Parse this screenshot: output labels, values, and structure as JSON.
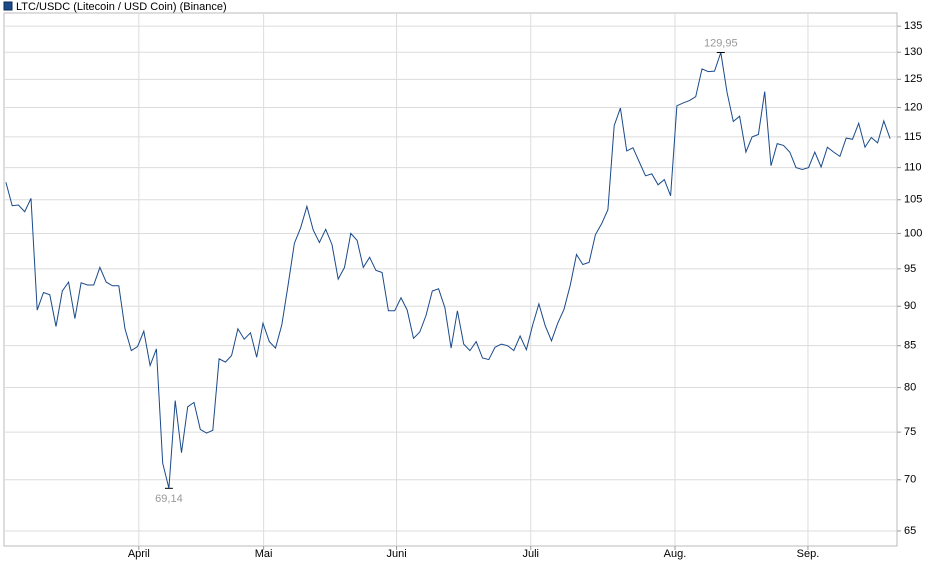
{
  "chart_data": {
    "type": "line",
    "log_scale": true,
    "grid": true,
    "series": [
      {
        "name": "LTC/USDC (Litecoin / USD Coin) (Binance)",
        "color": "#1a4a8a",
        "values": [
          107.7,
          104.1,
          104.2,
          103.2,
          105.2,
          89.5,
          91.8,
          91.5,
          87.4,
          92.0,
          93.2,
          88.4,
          93.1,
          92.8,
          92.8,
          95.2,
          93.2,
          92.7,
          92.7,
          87.1,
          84.4,
          84.9,
          86.8,
          82.6,
          84.6,
          71.7,
          69.14,
          78.5,
          72.8,
          77.8,
          78.3,
          75.3,
          74.9,
          75.2,
          83.4,
          83.0,
          83.8,
          87.1,
          85.8,
          86.6,
          83.6,
          87.8,
          85.5,
          84.7,
          87.6,
          92.8,
          98.6,
          100.8,
          104.0,
          100.5,
          98.7,
          100.6,
          98.4,
          93.6,
          95.2,
          100.0,
          99.0,
          95.2,
          96.6,
          94.8,
          94.5,
          89.4,
          89.4,
          91.1,
          89.5,
          85.9,
          86.7,
          88.8,
          92.0,
          92.3,
          89.8,
          84.7,
          89.4,
          85.2,
          84.4,
          85.5,
          83.5,
          83.3,
          84.8,
          85.2,
          85.0,
          84.4,
          86.2,
          84.5,
          87.6,
          90.3,
          87.5,
          85.6,
          87.8,
          89.6,
          92.8,
          97.0,
          95.6,
          95.9,
          99.8,
          101.4,
          103.5,
          116.9,
          119.9,
          112.7,
          113.2,
          110.9,
          108.7,
          109.0,
          107.3,
          108.1,
          105.6,
          120.3,
          120.8,
          121.2,
          121.9,
          126.9,
          126.4,
          126.5,
          129.95,
          122.6,
          117.6,
          118.5,
          112.5,
          115.0,
          115.4,
          122.8,
          110.3,
          113.9,
          113.6,
          112.5,
          110.0,
          109.7,
          110.0,
          112.5,
          110.1,
          113.3,
          112.5,
          111.8,
          114.8,
          114.6,
          117.3,
          113.3,
          114.9,
          114.0,
          117.7,
          114.7
        ],
        "value_labels": [
          null,
          null,
          null,
          null,
          null,
          null,
          null,
          null,
          null,
          null,
          null,
          null,
          null,
          null,
          null,
          null,
          null,
          null,
          null,
          null,
          null,
          null,
          null,
          null,
          null,
          null,
          "69,14",
          null,
          null,
          null,
          null,
          null,
          null,
          null,
          null,
          null,
          null,
          null,
          null,
          null,
          null,
          null,
          null,
          null,
          null,
          null,
          null,
          null,
          null,
          null,
          null,
          null,
          null,
          null,
          null,
          null,
          null,
          null,
          null,
          null,
          null,
          null,
          null,
          null,
          null,
          null,
          null,
          null,
          null,
          null,
          null,
          null,
          null,
          null,
          null,
          null,
          null,
          null,
          null,
          null,
          null,
          null,
          null,
          null,
          null,
          null,
          null,
          null,
          null,
          null,
          null,
          null,
          null,
          null,
          null,
          null,
          null,
          null,
          null,
          null,
          null,
          null,
          null,
          null,
          null,
          null,
          null,
          null,
          null,
          null,
          null,
          null,
          null,
          null,
          "129,95",
          null,
          null,
          null,
          null,
          null,
          null,
          null,
          null,
          null,
          null,
          null,
          null,
          null,
          null,
          null,
          null,
          null,
          null,
          null,
          null,
          null,
          null,
          null,
          null,
          null,
          null,
          null
        ]
      }
    ],
    "categories": [
      null,
      null,
      null,
      null,
      null,
      null,
      null,
      null,
      null,
      null,
      null,
      null,
      null,
      null,
      null,
      null,
      null,
      null,
      null,
      null,
      null,
      null,
      null,
      null,
      null,
      null,
      null,
      null,
      null,
      null,
      null,
      null,
      null,
      null,
      null,
      null,
      null,
      null,
      null,
      null,
      null,
      null,
      null,
      null,
      null,
      null,
      null,
      null,
      null,
      null,
      null,
      null,
      null,
      null,
      null,
      null,
      null,
      null,
      null,
      null,
      null,
      null,
      null,
      null,
      null,
      null,
      null,
      null,
      null,
      null,
      null,
      null,
      null,
      null,
      null,
      null,
      null,
      null,
      null,
      null,
      null,
      null,
      null,
      null,
      null,
      null,
      null,
      null,
      null,
      null,
      null,
      null,
      null,
      null,
      null,
      null,
      null,
      null,
      null,
      null,
      null,
      null,
      null,
      null,
      null,
      null,
      null,
      null,
      null,
      null,
      null,
      null,
      null,
      null,
      null,
      null,
      null,
      null,
      null,
      null,
      null,
      null,
      null,
      null,
      null,
      null,
      null,
      null,
      null,
      null,
      null,
      null,
      null,
      null,
      null,
      null,
      null,
      null,
      null,
      null,
      null,
      null
    ],
    "xlim": [
      -0.3,
      142.1
    ],
    "xticks": [
      {
        "value": 21.2,
        "label": "April"
      },
      {
        "value": 41.1,
        "label": "Mai"
      },
      {
        "value": 62.3,
        "label": "Juni"
      },
      {
        "value": 83.7,
        "label": "Juli"
      },
      {
        "value": 106.7,
        "label": "Aug."
      },
      {
        "value": 127.9,
        "label": "Sep."
      }
    ],
    "ylim": [
      63.6,
      137.6
    ],
    "yticks": [
      65,
      70,
      75,
      80,
      85,
      90,
      95,
      100,
      105,
      110,
      115,
      120,
      125,
      130,
      135
    ]
  }
}
